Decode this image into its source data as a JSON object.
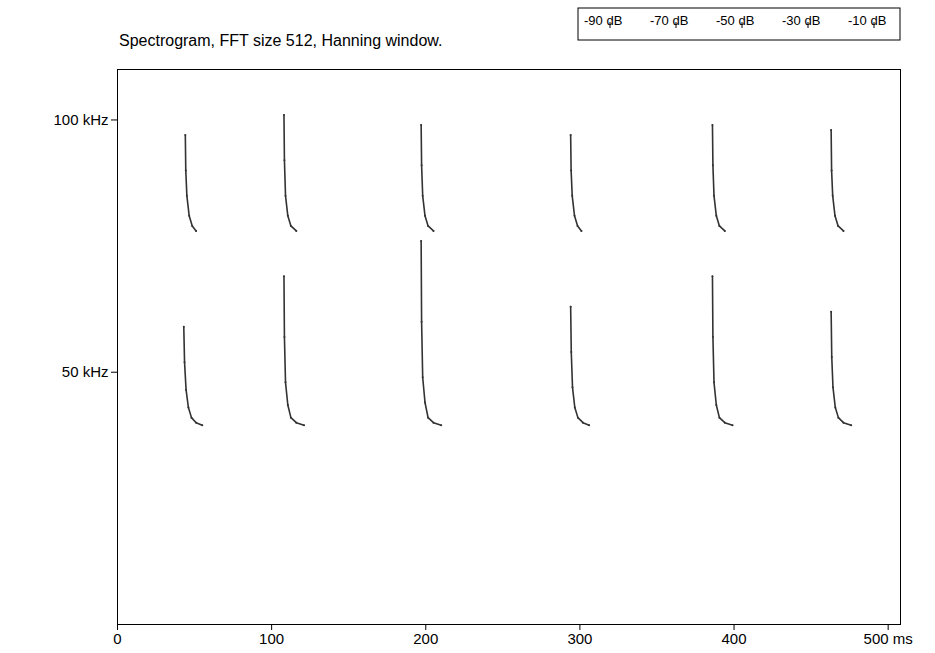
{
  "chart_data": {
    "type": "spectrogram",
    "title": "Spectrogram, FFT size 512, Hanning window.",
    "xlim": [
      0,
      508
    ],
    "ylim": [
      0,
      110
    ],
    "xticks": [
      0,
      100,
      200,
      300,
      400,
      {
        "value": 500,
        "label": "500 ms"
      }
    ],
    "yticks": [
      {
        "value": 50,
        "label": "50 kHz"
      },
      {
        "value": 100,
        "label": "100 kHz"
      }
    ],
    "color_bar": {
      "range": [
        -90,
        -10
      ],
      "ticks": [
        {
          "value": -90,
          "label": "-90 dB"
        },
        {
          "value": -70,
          "label": "-70 dB"
        },
        {
          "value": -50,
          "label": "-50 dB"
        },
        {
          "value": -30,
          "label": "-30 dB"
        },
        {
          "value": -10,
          "label": "-10 dB"
        }
      ]
    },
    "series": [
      {
        "color": "#333333",
        "x": [
          43,
          43.5,
          44.5,
          46,
          48,
          51,
          55
        ],
        "values": [
          59,
          52,
          46.5,
          43,
          41,
          40,
          39.5
        ]
      },
      {
        "color": "#333333",
        "x": [
          44,
          44.3,
          45,
          46.5,
          48.5,
          51
        ],
        "values": [
          97,
          90,
          85,
          81,
          79,
          78
        ]
      },
      {
        "color": "#333333",
        "x": [
          108,
          108.3,
          109,
          110.5,
          112.5,
          116,
          121
        ],
        "values": [
          69,
          57,
          48,
          43.5,
          41,
          40,
          39.5
        ]
      },
      {
        "color": "#333333",
        "x": [
          108,
          108.3,
          109,
          110.5,
          112.5,
          116
        ],
        "values": [
          101,
          92,
          85,
          81,
          79,
          78
        ]
      },
      {
        "color": "#333333",
        "x": [
          197,
          197.3,
          198,
          199.5,
          201.5,
          205,
          210
        ],
        "values": [
          76,
          60,
          49,
          44,
          41,
          40,
          39.5
        ]
      },
      {
        "color": "#333333",
        "x": [
          197,
          197.3,
          198,
          199.5,
          201.5,
          205
        ],
        "values": [
          99,
          91,
          85,
          81,
          79,
          78
        ]
      },
      {
        "color": "#333333",
        "x": [
          294,
          294.4,
          295.2,
          296.7,
          298.7,
          302,
          306
        ],
        "values": [
          63,
          54,
          47,
          43,
          41,
          40,
          39.5
        ]
      },
      {
        "color": "#333333",
        "x": [
          294,
          294.3,
          295,
          296.5,
          298.5,
          301
        ],
        "values": [
          97,
          90,
          85,
          81,
          79,
          78
        ]
      },
      {
        "color": "#333333",
        "x": [
          386,
          386.3,
          387,
          388.5,
          390.5,
          394,
          399
        ],
        "values": [
          69,
          57,
          48,
          43.5,
          41,
          40,
          39.5
        ]
      },
      {
        "color": "#333333",
        "x": [
          386,
          386.3,
          387,
          388.5,
          390.5,
          394
        ],
        "values": [
          99,
          91,
          85,
          81,
          79,
          78
        ]
      },
      {
        "color": "#333333",
        "x": [
          463,
          463.4,
          464.2,
          465.7,
          467.7,
          471,
          476
        ],
        "values": [
          62,
          53,
          47,
          43,
          41,
          40,
          39.5
        ]
      },
      {
        "color": "#333333",
        "x": [
          463,
          463.3,
          464,
          465.5,
          467.5,
          471
        ],
        "values": [
          98,
          90,
          85,
          81,
          79,
          78
        ]
      }
    ]
  }
}
